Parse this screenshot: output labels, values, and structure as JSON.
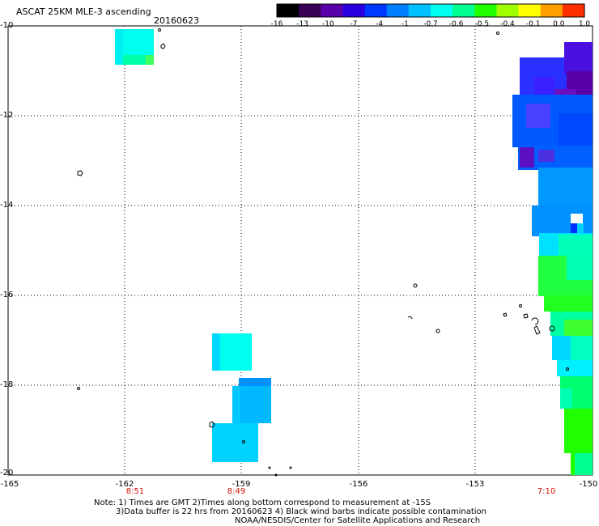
{
  "header": {
    "title": "ASCAT 25KM MLE-3 ascending",
    "date": "20160623"
  },
  "colorbar": {
    "labels": [
      "-16",
      "-13",
      "-10",
      "-7",
      "-4",
      "-1",
      "-0.7",
      "-0.6",
      "-0.5",
      "-0.4",
      "-0.1",
      "0.0",
      "1.0"
    ],
    "colors": [
      "#000000",
      "#3a0058",
      "#5a00a8",
      "#2a00e0",
      "#0038ff",
      "#0080ff",
      "#00c0ff",
      "#00ffee",
      "#00ff90",
      "#20ff00",
      "#a0ff00",
      "#ffff00",
      "#ffa000",
      "#ff3000"
    ]
  },
  "axes": {
    "lat_labels": [
      "-10",
      "-12",
      "-14",
      "-16",
      "-18",
      "-20"
    ],
    "lon_labels": [
      "-165",
      "-162",
      "-159",
      "-156",
      "-153",
      "-150"
    ],
    "time_labels": [
      {
        "text": "8:51",
        "lon": -162
      },
      {
        "text": "8:49",
        "lon": -159
      },
      {
        "text": "7:10",
        "lon": -151
      }
    ]
  },
  "notes": [
    "Note: 1) Times are GMT 2)Times along bottom correspond to measurement at -15S",
    "3)Data buffer is 22 hrs from 20160623 4) Black wind barbs indicate possible contamination",
    "NOAA/NESDIS/Center for Satellite Applications and Research"
  ]
}
